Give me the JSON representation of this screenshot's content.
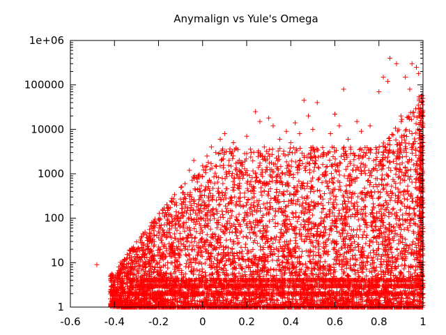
{
  "chart_data": {
    "type": "scatter",
    "title": "Anymalign vs Yule's Omega",
    "xlabel": "",
    "ylabel": "",
    "xlim": [
      -0.6,
      1
    ],
    "ylim": [
      1,
      1000000
    ],
    "y_scale": "log",
    "grid": false,
    "legend": "none",
    "marker": "plus",
    "color": "#ff0000",
    "x_ticks": [
      -0.6,
      -0.4,
      -0.2,
      0,
      0.2,
      0.4,
      0.6,
      0.8,
      1
    ],
    "x_tick_labels": [
      "-0.6",
      "-0.4",
      "-0.2",
      "0",
      "0.2",
      "0.4",
      "0.6",
      "0.8",
      "1"
    ],
    "y_ticks": [
      1,
      10,
      100,
      1000,
      10000,
      100000,
      1000000
    ],
    "y_tick_labels": [
      "1",
      "10",
      "100",
      "1000",
      "10000",
      "100000",
      "1e+06"
    ],
    "series": [
      {
        "points": [
          [
            -0.48,
            9
          ],
          [
            -0.38,
            8
          ],
          [
            -0.37,
            2
          ],
          [
            -0.36,
            4
          ],
          [
            -0.32,
            11
          ],
          [
            -0.3,
            5
          ],
          [
            -0.29,
            13
          ],
          [
            -0.28,
            28
          ],
          [
            -0.27,
            7
          ],
          [
            -0.25,
            20
          ],
          [
            -0.24,
            45
          ],
          [
            -0.23,
            3
          ],
          [
            -0.22,
            40
          ],
          [
            -0.2,
            95
          ],
          [
            -0.19,
            60
          ],
          [
            -0.18,
            150
          ],
          [
            -0.16,
            170
          ],
          [
            -0.15,
            80
          ],
          [
            -0.14,
            230
          ],
          [
            -0.12,
            140
          ],
          [
            -0.1,
            270
          ],
          [
            -0.08,
            600
          ],
          [
            -0.06,
            1200
          ],
          [
            -0.05,
            300
          ],
          [
            -0.04,
            2000
          ],
          [
            -0.02,
            900
          ],
          [
            0.0,
            1500
          ],
          [
            0.02,
            2500
          ],
          [
            0.04,
            4000
          ],
          [
            0.06,
            3000
          ],
          [
            0.08,
            6000
          ],
          [
            0.1,
            8000
          ],
          [
            0.12,
            2000
          ],
          [
            0.14,
            5000
          ],
          [
            0.16,
            3500
          ],
          [
            0.2,
            7000
          ],
          [
            0.22,
            3000
          ],
          [
            0.24,
            25000
          ],
          [
            0.26,
            15000
          ],
          [
            0.28,
            4000
          ],
          [
            0.3,
            18000
          ],
          [
            0.32,
            12000
          ],
          [
            0.35,
            6000
          ],
          [
            0.38,
            9000
          ],
          [
            0.4,
            5000
          ],
          [
            0.42,
            14000
          ],
          [
            0.44,
            8000
          ],
          [
            0.46,
            45000
          ],
          [
            0.48,
            20000
          ],
          [
            0.5,
            10000
          ],
          [
            0.52,
            40000
          ],
          [
            0.55,
            3000
          ],
          [
            0.58,
            8000
          ],
          [
            0.6,
            22000
          ],
          [
            0.62,
            12000
          ],
          [
            0.64,
            80000
          ],
          [
            0.66,
            6000
          ],
          [
            0.7,
            15000
          ],
          [
            0.72,
            9000
          ],
          [
            0.76,
            12000
          ],
          [
            0.8,
            70000
          ],
          [
            0.82,
            150000
          ],
          [
            0.84,
            120000
          ],
          [
            0.85,
            400000
          ],
          [
            0.88,
            300000
          ],
          [
            0.9,
            20000
          ],
          [
            0.92,
            150000
          ],
          [
            0.94,
            80000
          ],
          [
            0.95,
            300000
          ],
          [
            0.97,
            250000
          ],
          [
            0.98,
            180000
          ],
          [
            0.99,
            30000
          ],
          [
            0.3,
            400
          ],
          [
            0.4,
            350
          ],
          [
            0.5,
            500
          ],
          [
            0.6,
            450
          ],
          [
            0.7,
            800
          ],
          [
            0.8,
            1500
          ],
          [
            0.9,
            3000
          ],
          [
            0.95,
            8000
          ],
          [
            1.0,
            50
          ],
          [
            1.0,
            5000
          ],
          [
            1.0,
            50000
          ]
        ]
      }
    ]
  }
}
